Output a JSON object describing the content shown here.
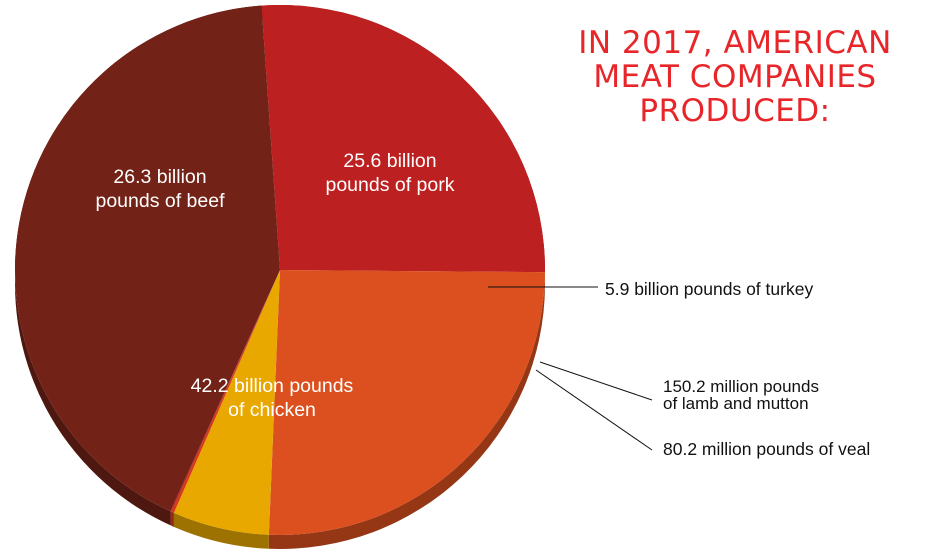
{
  "title_lines": [
    "IN 2017, AMERICAN",
    "MEAT COMPANIES",
    "PRODUCED:"
  ],
  "chart_data": {
    "type": "pie",
    "title": "IN 2017, AMERICAN MEAT COMPANIES PRODUCED:",
    "unit": "billion pounds",
    "slices": [
      {
        "name": "beef",
        "value": 26.3,
        "color": "#bd2020",
        "label": [
          "26.3 billion",
          "pounds of beef"
        ]
      },
      {
        "name": "pork",
        "value": 25.6,
        "color": "#db501e",
        "label": [
          "25.6 billion",
          "pounds of pork"
        ]
      },
      {
        "name": "turkey",
        "value": 5.9,
        "color": "#e8a800",
        "label": [
          "5.9 billion pounds of turkey"
        ]
      },
      {
        "name": "lamb and mutton",
        "value": 0.1502,
        "color": "#d8361c",
        "label": [
          "150.2 million pounds",
          "of lamb and mutton"
        ]
      },
      {
        "name": "veal",
        "value": 0.0802,
        "color": "#b52a1a",
        "label": [
          "80.2 million pounds of veal"
        ]
      },
      {
        "name": "chicken",
        "value": 42.2,
        "color": "#722216",
        "label": [
          "42.2 billion pounds",
          "of chicken"
        ]
      }
    ]
  }
}
